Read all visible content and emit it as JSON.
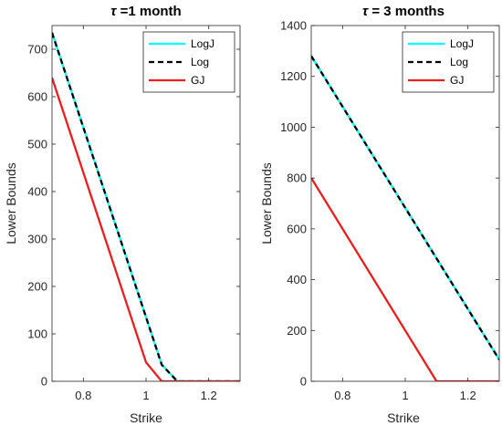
{
  "colors": {
    "LogJ": "#00ffff",
    "Log": "#000000",
    "GJ": "#ee1c1c",
    "axis": "#262626"
  },
  "chart_data": [
    {
      "type": "line",
      "title_symbol": "τ",
      "title_text": " =1 month",
      "xlabel": "Strike",
      "ylabel": "Lower Bounds",
      "xlim": [
        0.7,
        1.3
      ],
      "ylim": [
        0,
        750
      ],
      "xticks": [
        0.8,
        1,
        1.2
      ],
      "xtick_labels": [
        "0.8",
        "1",
        "1.2"
      ],
      "yticks": [
        0,
        100,
        200,
        300,
        400,
        500,
        600,
        700
      ],
      "ytick_labels": [
        "0",
        "100",
        "200",
        "300",
        "400",
        "500",
        "600",
        "700"
      ],
      "legend_position": "top-right",
      "grid": false,
      "series": [
        {
          "name": "LogJ",
          "style": "solid",
          "x": [
            0.7,
            1.05,
            1.1,
            1.3
          ],
          "y": [
            735,
            35,
            0,
            0
          ]
        },
        {
          "name": "Log",
          "style": "dashed",
          "x": [
            0.7,
            1.05,
            1.1,
            1.3
          ],
          "y": [
            735,
            35,
            0,
            0
          ]
        },
        {
          "name": "GJ",
          "style": "solid",
          "x": [
            0.7,
            1.0,
            1.05,
            1.3
          ],
          "y": [
            640,
            40,
            0,
            0
          ]
        }
      ]
    },
    {
      "type": "line",
      "title_symbol": "τ",
      "title_text": " = 3 months",
      "xlabel": "Strike",
      "ylabel": "Lower Bounds",
      "xlim": [
        0.7,
        1.3
      ],
      "ylim": [
        0,
        1400
      ],
      "xticks": [
        0.8,
        1,
        1.2
      ],
      "xtick_labels": [
        "0.8",
        "1",
        "1.2"
      ],
      "yticks": [
        0,
        200,
        400,
        600,
        800,
        1000,
        1200,
        1400
      ],
      "ytick_labels": [
        "0",
        "200",
        "400",
        "600",
        "800",
        "1000",
        "1200",
        "1400"
      ],
      "legend_position": "top-right",
      "grid": false,
      "series": [
        {
          "name": "LogJ",
          "style": "solid",
          "x": [
            0.7,
            1.3
          ],
          "y": [
            1280,
            85
          ]
        },
        {
          "name": "Log",
          "style": "dashed",
          "x": [
            0.7,
            1.3
          ],
          "y": [
            1280,
            85
          ]
        },
        {
          "name": "GJ",
          "style": "solid",
          "x": [
            0.7,
            1.1,
            1.3
          ],
          "y": [
            800,
            0,
            0
          ]
        }
      ]
    }
  ]
}
